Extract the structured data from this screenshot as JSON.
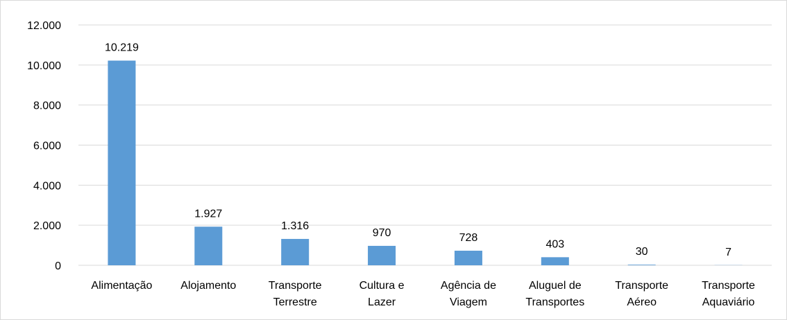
{
  "chart_data": {
    "type": "bar",
    "categories": [
      "Alimentação",
      "Alojamento",
      "Transporte Terrestre",
      "Cultura e Lazer",
      "Agência de Viagem",
      "Aluguel de Transportes",
      "Transporte Aéreo",
      "Transporte Aquaviário"
    ],
    "values": [
      10219,
      1927,
      1316,
      970,
      728,
      403,
      30,
      7
    ],
    "value_labels": [
      "10.219",
      "1.927",
      "1.316",
      "970",
      "728",
      "403",
      "30",
      "7"
    ],
    "color": "#5b9bd5",
    "ylim": [
      0,
      12000
    ],
    "yticks": [
      0,
      {
        "value": 2000,
        "label": "2.000"
      },
      {
        "value": 4000,
        "label": "4.000"
      },
      {
        "value": 6000,
        "label": "6.000"
      },
      {
        "value": 8000,
        "label": "8.000"
      },
      {
        "value": 10000,
        "label": "10.000"
      },
      {
        "value": 12000,
        "label": "12.000"
      }
    ],
    "grid": true
  }
}
